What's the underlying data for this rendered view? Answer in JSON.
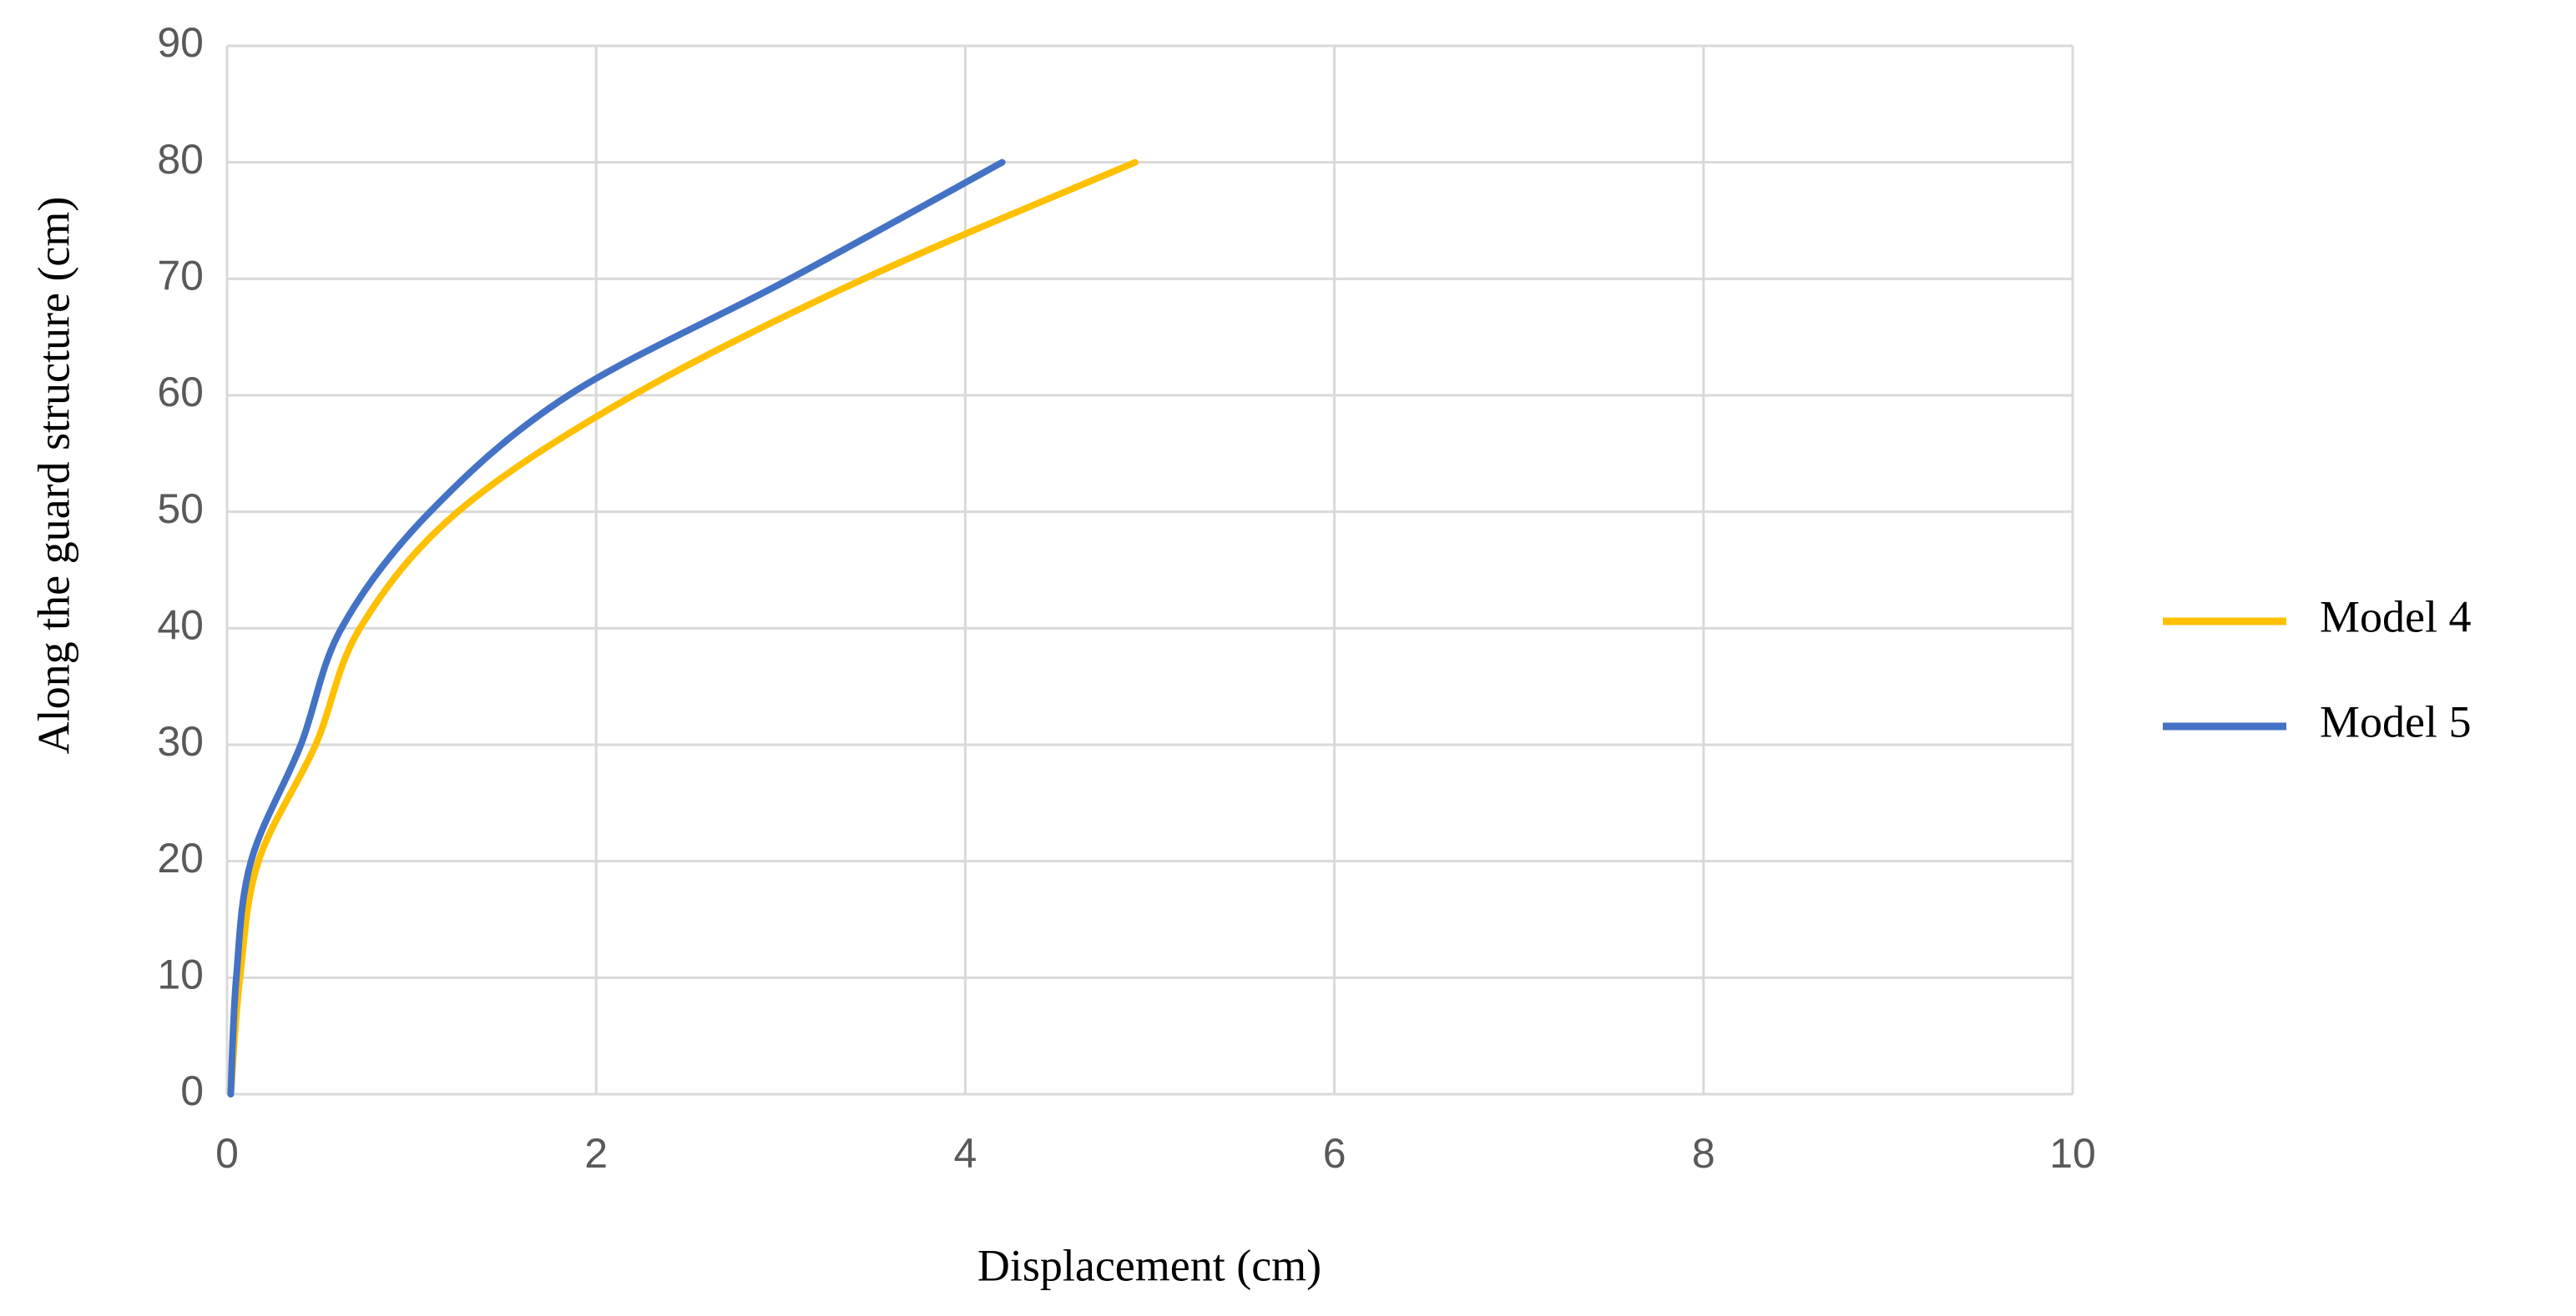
{
  "chart_data": {
    "type": "line",
    "xlabel": "Displacement (cm)",
    "ylabel": "Along the guard structure (cm)",
    "series": [
      {
        "name": "Model 4",
        "color": "#ffc000",
        "x": [
          0.02,
          0.07,
          0.17,
          0.48,
          0.72,
          1.25,
          2.2,
          3.45,
          4.92
        ],
        "values": [
          0,
          10,
          20,
          30,
          40,
          50,
          60,
          70,
          80
        ]
      },
      {
        "name": "Model 5",
        "color": "#4472c4",
        "x": [
          0.02,
          0.05,
          0.13,
          0.4,
          0.62,
          1.1,
          1.85,
          3.05,
          4.2
        ],
        "values": [
          0,
          10,
          20,
          30,
          40,
          50,
          60,
          70,
          80
        ]
      }
    ],
    "xlim": [
      0,
      10
    ],
    "xticks": [
      0,
      2,
      4,
      6,
      8,
      10
    ],
    "ylim": [
      0,
      90
    ],
    "yticks": [
      0,
      10,
      20,
      30,
      40,
      50,
      60,
      70,
      80,
      90
    ],
    "grid": true,
    "legend": "right"
  }
}
